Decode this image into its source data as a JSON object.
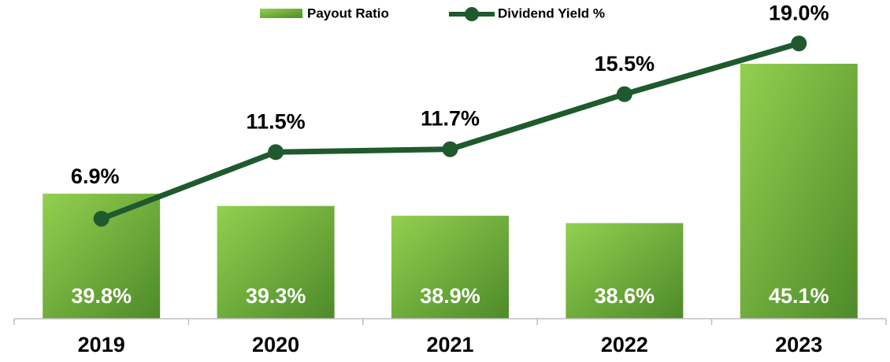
{
  "chart_data": {
    "type": "bar",
    "categories": [
      "2019",
      "2020",
      "2021",
      "2022",
      "2023"
    ],
    "series": [
      {
        "name": "Payout Ratio",
        "type": "bar",
        "color": "#92d050",
        "values": [
          39.8,
          39.3,
          38.9,
          38.6,
          45.1
        ],
        "value_labels": [
          "39.8%",
          "39.3%",
          "38.9%",
          "38.6%",
          "45.1%"
        ]
      },
      {
        "name": "Dividend Yield %",
        "type": "line",
        "axis": "y2",
        "color": "#1e5a2e",
        "values": [
          6.9,
          11.5,
          11.7,
          15.5,
          19.0
        ],
        "value_labels": [
          "6.9%",
          "11.5%",
          "11.7%",
          "15.5%",
          "19.0%"
        ]
      }
    ],
    "ylim": [
      34.7,
      47.7
    ],
    "y2lim": [
      0,
      22
    ],
    "grid": false,
    "legend": "top"
  }
}
